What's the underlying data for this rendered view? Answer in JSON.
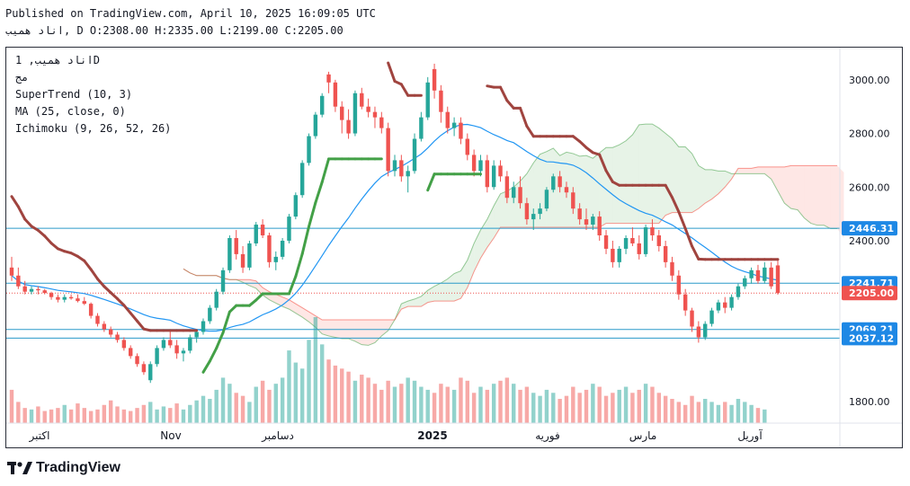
{
  "header": {
    "published": "Published on TradingView.com, April 10, 2025 16:09:05 UTC",
    "ohlc": "اناد همیب, D O:2308.00 H:2335.00 L:2199.00 C:2205.00"
  },
  "legend": {
    "symbol": "اناد همیب, 1D",
    "sub": "مج",
    "supertrend": "SuperTrend (10, 3)",
    "ma": "MA (25, close, 0)",
    "ichimoku": "Ichimoku (9, 26, 52, 26)"
  },
  "brand": "TradingView",
  "colors": {
    "up": "#26a69a",
    "down": "#ef5350",
    "supertrend_up": "#43a047",
    "supertrend_down": "#a0443f",
    "ma": "#2196f3",
    "line_blue": "#2a9ac9",
    "tag_blue": "#1e88e5",
    "tag_red": "#ef5350"
  },
  "chart_data": {
    "type": "candlestick",
    "ylim": [
      1720,
      3120
    ],
    "y_ticks": [
      "3000.00",
      "2800.00",
      "2600.00",
      "2400.00",
      "1800.00"
    ],
    "x_ticks": [
      "اکتبر",
      "Nov",
      "دسامبر",
      "2025",
      "فوریه",
      "مارس",
      "آوریل"
    ],
    "horizontal_levels": [
      {
        "value": 2446.31,
        "label": "2446.31",
        "style": "solid"
      },
      {
        "value": 2241.71,
        "label": "2241.71",
        "style": "solid"
      },
      {
        "value": 2205.0,
        "label": "2205.00",
        "style": "dotted"
      },
      {
        "value": 2069.21,
        "label": "2069.21",
        "style": "solid"
      },
      {
        "value": 2037.12,
        "label": "2037.12",
        "style": "solid"
      }
    ],
    "last_close": 2205.0,
    "candles": [
      [
        2300,
        2340,
        2250,
        2270
      ],
      [
        2270,
        2300,
        2220,
        2230
      ],
      [
        2230,
        2250,
        2200,
        2210
      ],
      [
        2210,
        2230,
        2200,
        2220
      ],
      [
        2220,
        2230,
        2200,
        2215
      ],
      [
        2215,
        2220,
        2200,
        2205
      ],
      [
        2205,
        2210,
        2180,
        2190
      ],
      [
        2190,
        2200,
        2170,
        2180
      ],
      [
        2180,
        2200,
        2170,
        2190
      ],
      [
        2190,
        2200,
        2180,
        2185
      ],
      [
        2185,
        2200,
        2170,
        2175
      ],
      [
        2175,
        2190,
        2160,
        2165
      ],
      [
        2165,
        2170,
        2110,
        2120
      ],
      [
        2120,
        2130,
        2080,
        2090
      ],
      [
        2090,
        2100,
        2060,
        2070
      ],
      [
        2070,
        2080,
        2040,
        2050
      ],
      [
        2050,
        2060,
        2020,
        2030
      ],
      [
        2030,
        2040,
        1990,
        2000
      ],
      [
        2000,
        2010,
        1960,
        1970
      ],
      [
        1970,
        1980,
        1930,
        1940
      ],
      [
        1940,
        1950,
        1900,
        1910
      ],
      [
        1880,
        1950,
        1870,
        1940
      ],
      [
        1940,
        2010,
        1930,
        2000
      ],
      [
        2000,
        2040,
        1990,
        2030
      ],
      [
        2030,
        2060,
        2000,
        2010
      ],
      [
        2010,
        2030,
        1960,
        1980
      ],
      [
        1980,
        2000,
        1950,
        1990
      ],
      [
        1990,
        2050,
        1980,
        2040
      ],
      [
        2040,
        2070,
        2020,
        2060
      ],
      [
        2060,
        2110,
        2050,
        2100
      ],
      [
        2100,
        2160,
        2090,
        2150
      ],
      [
        2150,
        2220,
        2140,
        2210
      ],
      [
        2210,
        2300,
        2200,
        2290
      ],
      [
        2290,
        2420,
        2280,
        2410
      ],
      [
        2410,
        2440,
        2330,
        2350
      ],
      [
        2350,
        2380,
        2280,
        2300
      ],
      [
        2300,
        2400,
        2290,
        2390
      ],
      [
        2390,
        2470,
        2380,
        2460
      ],
      [
        2460,
        2480,
        2410,
        2420
      ],
      [
        2420,
        2430,
        2300,
        2320
      ],
      [
        2320,
        2360,
        2290,
        2340
      ],
      [
        2340,
        2410,
        2330,
        2400
      ],
      [
        2400,
        2500,
        2390,
        2490
      ],
      [
        2490,
        2580,
        2480,
        2570
      ],
      [
        2570,
        2700,
        2560,
        2690
      ],
      [
        2690,
        2800,
        2680,
        2790
      ],
      [
        2790,
        2880,
        2780,
        2870
      ],
      [
        2870,
        2950,
        2860,
        2940
      ],
      [
        3020,
        3030,
        2950,
        2990
      ],
      [
        2990,
        3000,
        2880,
        2900
      ],
      [
        2900,
        2920,
        2800,
        2850
      ],
      [
        2850,
        2890,
        2780,
        2800
      ],
      [
        2800,
        2960,
        2790,
        2950
      ],
      [
        2950,
        2970,
        2890,
        2900
      ],
      [
        2900,
        2930,
        2860,
        2880
      ],
      [
        2880,
        2900,
        2820,
        2860
      ],
      [
        2860,
        2880,
        2800,
        2820
      ],
      [
        2820,
        2840,
        2640,
        2660
      ],
      [
        2660,
        2720,
        2640,
        2700
      ],
      [
        2700,
        2720,
        2620,
        2640
      ],
      [
        2640,
        2680,
        2580,
        2660
      ],
      [
        2660,
        2800,
        2650,
        2780
      ],
      [
        2780,
        2880,
        2770,
        2860
      ],
      [
        2860,
        3010,
        2850,
        2990
      ],
      [
        3040,
        3060,
        2930,
        2960
      ],
      [
        2960,
        2980,
        2840,
        2880
      ],
      [
        2880,
        2900,
        2800,
        2820
      ],
      [
        2820,
        2860,
        2790,
        2840
      ],
      [
        2840,
        2860,
        2760,
        2780
      ],
      [
        2780,
        2800,
        2700,
        2720
      ],
      [
        2720,
        2740,
        2640,
        2660
      ],
      [
        2660,
        2720,
        2640,
        2700
      ],
      [
        2700,
        2720,
        2580,
        2600
      ],
      [
        2600,
        2700,
        2590,
        2680
      ],
      [
        2680,
        2700,
        2620,
        2640
      ],
      [
        2640,
        2660,
        2540,
        2560
      ],
      [
        2560,
        2620,
        2540,
        2600
      ],
      [
        2600,
        2640,
        2520,
        2540
      ],
      [
        2540,
        2560,
        2460,
        2480
      ],
      [
        2480,
        2520,
        2440,
        2500
      ],
      [
        2500,
        2540,
        2480,
        2520
      ],
      [
        2520,
        2600,
        2510,
        2590
      ],
      [
        2590,
        2650,
        2580,
        2640
      ],
      [
        2640,
        2660,
        2580,
        2600
      ],
      [
        2600,
        2620,
        2560,
        2580
      ],
      [
        2580,
        2600,
        2500,
        2520
      ],
      [
        2520,
        2540,
        2460,
        2480
      ],
      [
        2480,
        2520,
        2440,
        2460
      ],
      [
        2460,
        2500,
        2440,
        2490
      ],
      [
        2490,
        2510,
        2400,
        2420
      ],
      [
        2420,
        2440,
        2350,
        2370
      ],
      [
        2370,
        2400,
        2300,
        2320
      ],
      [
        2320,
        2380,
        2300,
        2370
      ],
      [
        2370,
        2420,
        2350,
        2410
      ],
      [
        2410,
        2450,
        2380,
        2390
      ],
      [
        2390,
        2420,
        2330,
        2350
      ],
      [
        2350,
        2460,
        2340,
        2450
      ],
      [
        2450,
        2480,
        2400,
        2420
      ],
      [
        2420,
        2440,
        2360,
        2380
      ],
      [
        2380,
        2400,
        2300,
        2320
      ],
      [
        2320,
        2340,
        2250,
        2270
      ],
      [
        2270,
        2290,
        2180,
        2200
      ],
      [
        2200,
        2220,
        2120,
        2140
      ],
      [
        2140,
        2150,
        2060,
        2080
      ],
      [
        2080,
        2100,
        2020,
        2040
      ],
      [
        2040,
        2100,
        2030,
        2090
      ],
      [
        2090,
        2150,
        2080,
        2140
      ],
      [
        2140,
        2180,
        2130,
        2170
      ],
      [
        2170,
        2190,
        2130,
        2150
      ],
      [
        2150,
        2200,
        2140,
        2190
      ],
      [
        2190,
        2240,
        2180,
        2230
      ],
      [
        2230,
        2270,
        2220,
        2260
      ],
      [
        2260,
        2300,
        2240,
        2290
      ],
      [
        2290,
        2310,
        2240,
        2250
      ],
      [
        2250,
        2320,
        2240,
        2300
      ],
      [
        2300,
        2320,
        2220,
        2230
      ],
      [
        2308,
        2335,
        2199,
        2205
      ]
    ],
    "volumes": [
      22,
      14,
      10,
      9,
      11,
      8,
      9,
      10,
      12,
      9,
      13,
      10,
      8,
      9,
      12,
      15,
      11,
      9,
      8,
      10,
      12,
      14,
      9,
      11,
      10,
      13,
      9,
      12,
      15,
      18,
      16,
      22,
      30,
      26,
      20,
      18,
      14,
      24,
      28,
      22,
      26,
      30,
      48,
      40,
      36,
      55,
      70,
      52,
      42,
      38,
      36,
      34,
      28,
      32,
      30,
      26,
      22,
      28,
      24,
      26,
      30,
      28,
      24,
      22,
      20,
      26,
      24,
      22,
      30,
      28,
      20,
      24,
      22,
      26,
      28,
      30,
      26,
      22,
      24,
      20,
      18,
      22,
      20,
      16,
      18,
      24,
      20,
      22,
      26,
      24,
      18,
      20,
      22,
      24,
      20,
      22,
      26,
      24,
      20,
      18,
      16,
      14,
      12,
      18,
      14,
      16,
      14,
      12,
      14,
      12,
      16,
      14,
      12,
      10,
      9
    ]
  }
}
